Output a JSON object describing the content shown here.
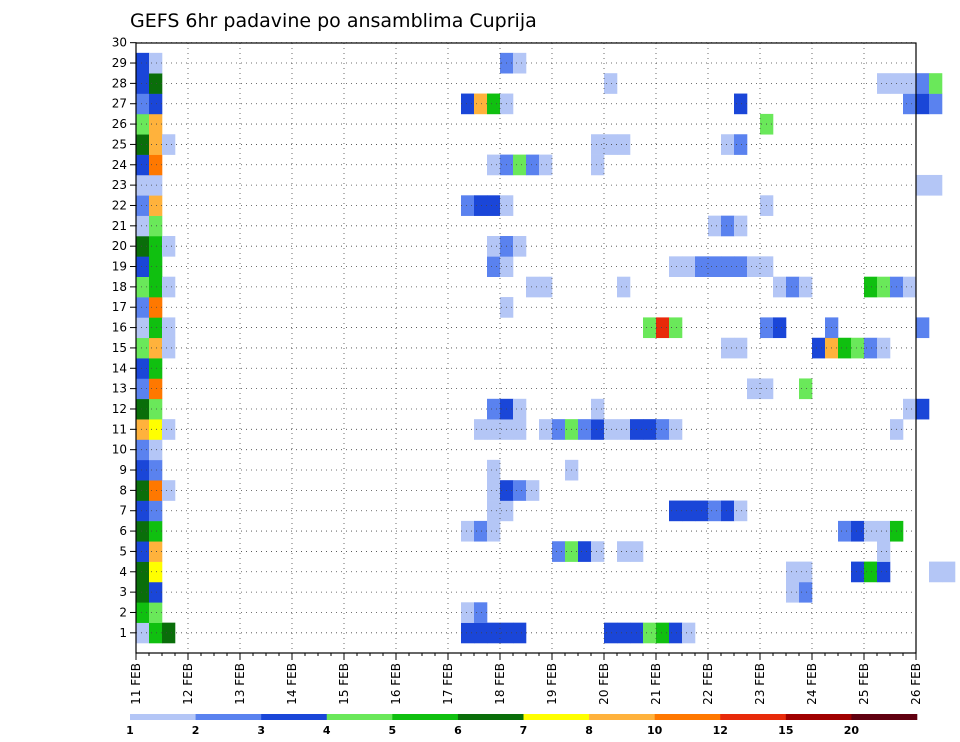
{
  "chart_data": {
    "type": "heatmap",
    "title": "GEFS 6hr padavine po ansamblima Cuprija",
    "y_ticks": [
      "1",
      "2",
      "3",
      "4",
      "5",
      "6",
      "7",
      "8",
      "9",
      "10",
      "11",
      "12",
      "13",
      "14",
      "15",
      "16",
      "17",
      "18",
      "19",
      "20",
      "21",
      "22",
      "23",
      "24",
      "25",
      "26",
      "27",
      "28",
      "29",
      "30"
    ],
    "x_ticks": [
      "11 FEB",
      "12 FEB",
      "13 FEB",
      "14 FEB",
      "15 FEB",
      "16 FEB",
      "17 FEB",
      "18 FEB",
      "19 FEB",
      "20 FEB",
      "21 FEB",
      "22 FEB",
      "23 FEB",
      "24 FEB",
      "25 FEB",
      "26 FEB"
    ],
    "x_range": [
      "11 FEB 00z",
      "26 FEB 00z"
    ],
    "time_step_hours": 6,
    "y_range": [
      1,
      30
    ],
    "grid": "dotted",
    "colorbar": {
      "labels": [
        "1",
        "2",
        "3",
        "4",
        "5",
        "6",
        "7",
        "8",
        "10",
        "12",
        "15",
        "20"
      ],
      "colors": [
        "#b4c6f6",
        "#5a82ef",
        "#1a46d8",
        "#6ae85a",
        "#10c010",
        "#0a6e0a",
        "#ffff00",
        "#ffb23c",
        "#ff7800",
        "#e82a0a",
        "#a00000",
        "#600010"
      ]
    },
    "cells": [
      [
        1,
        0,
        0
      ],
      [
        1,
        1,
        4
      ],
      [
        1,
        2,
        5
      ],
      [
        1,
        25,
        2
      ],
      [
        1,
        26,
        2
      ],
      [
        1,
        27,
        2
      ],
      [
        1,
        28,
        2
      ],
      [
        1,
        29,
        2
      ],
      [
        1,
        36,
        2
      ],
      [
        1,
        37,
        2
      ],
      [
        1,
        38,
        2
      ],
      [
        1,
        39,
        3
      ],
      [
        1,
        40,
        4
      ],
      [
        1,
        41,
        2
      ],
      [
        1,
        42,
        0
      ],
      [
        2,
        0,
        4
      ],
      [
        2,
        1,
        3
      ],
      [
        2,
        25,
        0
      ],
      [
        2,
        26,
        1
      ],
      [
        3,
        0,
        5
      ],
      [
        3,
        1,
        2
      ],
      [
        3,
        50,
        0
      ],
      [
        3,
        51,
        1
      ],
      [
        4,
        0,
        5
      ],
      [
        4,
        1,
        6
      ],
      [
        4,
        50,
        0
      ],
      [
        4,
        51,
        0
      ],
      [
        4,
        55,
        2
      ],
      [
        4,
        56,
        4
      ],
      [
        4,
        57,
        2
      ],
      [
        4,
        61,
        0
      ],
      [
        4,
        62,
        0
      ],
      [
        4,
        64,
        1
      ],
      [
        5,
        0,
        2
      ],
      [
        5,
        1,
        7
      ],
      [
        5,
        32,
        1
      ],
      [
        5,
        33,
        3
      ],
      [
        5,
        34,
        2
      ],
      [
        5,
        35,
        0
      ],
      [
        5,
        37,
        0
      ],
      [
        5,
        38,
        0
      ],
      [
        5,
        57,
        0
      ],
      [
        6,
        0,
        5
      ],
      [
        6,
        1,
        4
      ],
      [
        6,
        25,
        0
      ],
      [
        6,
        26,
        1
      ],
      [
        6,
        27,
        0
      ],
      [
        6,
        54,
        1
      ],
      [
        6,
        55,
        2
      ],
      [
        6,
        56,
        0
      ],
      [
        6,
        57,
        0
      ],
      [
        6,
        58,
        4
      ],
      [
        7,
        0,
        2
      ],
      [
        7,
        1,
        1
      ],
      [
        7,
        27,
        0
      ],
      [
        7,
        28,
        0
      ],
      [
        7,
        41,
        2
      ],
      [
        7,
        42,
        2
      ],
      [
        7,
        43,
        2
      ],
      [
        7,
        44,
        1
      ],
      [
        7,
        45,
        2
      ],
      [
        7,
        46,
        0
      ],
      [
        8,
        0,
        5
      ],
      [
        8,
        1,
        8
      ],
      [
        8,
        2,
        0
      ],
      [
        8,
        27,
        0
      ],
      [
        8,
        28,
        2
      ],
      [
        8,
        29,
        1
      ],
      [
        8,
        30,
        0
      ],
      [
        9,
        0,
        2
      ],
      [
        9,
        1,
        1
      ],
      [
        9,
        27,
        0
      ],
      [
        9,
        33,
        0
      ],
      [
        10,
        0,
        1
      ],
      [
        10,
        1,
        0
      ],
      [
        11,
        0,
        7
      ],
      [
        11,
        1,
        6
      ],
      [
        11,
        2,
        0
      ],
      [
        11,
        26,
        0
      ],
      [
        11,
        27,
        0
      ],
      [
        11,
        28,
        0
      ],
      [
        11,
        29,
        0
      ],
      [
        11,
        31,
        0
      ],
      [
        11,
        32,
        1
      ],
      [
        11,
        33,
        3
      ],
      [
        11,
        34,
        1
      ],
      [
        11,
        35,
        2
      ],
      [
        11,
        36,
        0
      ],
      [
        11,
        37,
        0
      ],
      [
        11,
        38,
        2
      ],
      [
        11,
        39,
        2
      ],
      [
        11,
        40,
        1
      ],
      [
        11,
        41,
        0
      ],
      [
        11,
        58,
        0
      ],
      [
        12,
        0,
        5
      ],
      [
        12,
        1,
        3
      ],
      [
        12,
        27,
        1
      ],
      [
        12,
        28,
        2
      ],
      [
        12,
        29,
        0
      ],
      [
        12,
        35,
        0
      ],
      [
        12,
        59,
        0
      ],
      [
        12,
        60,
        2
      ],
      [
        13,
        0,
        1
      ],
      [
        13,
        1,
        8
      ],
      [
        13,
        47,
        0
      ],
      [
        13,
        48,
        0
      ],
      [
        13,
        51,
        3
      ],
      [
        14,
        0,
        2
      ],
      [
        14,
        1,
        4
      ],
      [
        15,
        0,
        3
      ],
      [
        15,
        1,
        7
      ],
      [
        15,
        2,
        0
      ],
      [
        15,
        45,
        0
      ],
      [
        15,
        46,
        0
      ],
      [
        15,
        52,
        2
      ],
      [
        15,
        53,
        7
      ],
      [
        15,
        54,
        4
      ],
      [
        15,
        55,
        3
      ],
      [
        15,
        56,
        1
      ],
      [
        15,
        57,
        0
      ],
      [
        16,
        0,
        0
      ],
      [
        16,
        1,
        4
      ],
      [
        16,
        2,
        0
      ],
      [
        16,
        39,
        3
      ],
      [
        16,
        40,
        9
      ],
      [
        16,
        41,
        3
      ],
      [
        16,
        48,
        1
      ],
      [
        16,
        49,
        2
      ],
      [
        16,
        53,
        1
      ],
      [
        16,
        60,
        1
      ],
      [
        17,
        0,
        1
      ],
      [
        17,
        1,
        8
      ],
      [
        17,
        28,
        0
      ],
      [
        18,
        0,
        3
      ],
      [
        18,
        1,
        4
      ],
      [
        18,
        2,
        0
      ],
      [
        18,
        30,
        0
      ],
      [
        18,
        31,
        0
      ],
      [
        18,
        37,
        0
      ],
      [
        18,
        49,
        0
      ],
      [
        18,
        50,
        1
      ],
      [
        18,
        51,
        0
      ],
      [
        18,
        56,
        4
      ],
      [
        18,
        57,
        3
      ],
      [
        18,
        58,
        1
      ],
      [
        18,
        59,
        0
      ],
      [
        19,
        0,
        2
      ],
      [
        19,
        1,
        4
      ],
      [
        19,
        27,
        1
      ],
      [
        19,
        28,
        0
      ],
      [
        19,
        41,
        0
      ],
      [
        19,
        42,
        0
      ],
      [
        19,
        43,
        1
      ],
      [
        19,
        44,
        1
      ],
      [
        19,
        45,
        1
      ],
      [
        19,
        46,
        1
      ],
      [
        19,
        47,
        0
      ],
      [
        19,
        48,
        0
      ],
      [
        20,
        0,
        5
      ],
      [
        20,
        1,
        4
      ],
      [
        20,
        2,
        0
      ],
      [
        20,
        27,
        0
      ],
      [
        20,
        28,
        1
      ],
      [
        20,
        29,
        0
      ],
      [
        21,
        0,
        0
      ],
      [
        21,
        1,
        3
      ],
      [
        21,
        44,
        0
      ],
      [
        21,
        45,
        1
      ],
      [
        21,
        46,
        0
      ],
      [
        22,
        0,
        1
      ],
      [
        22,
        1,
        7
      ],
      [
        22,
        25,
        1
      ],
      [
        22,
        26,
        2
      ],
      [
        22,
        27,
        2
      ],
      [
        22,
        28,
        0
      ],
      [
        22,
        48,
        0
      ],
      [
        23,
        0,
        0
      ],
      [
        23,
        1,
        0
      ],
      [
        23,
        60,
        0
      ],
      [
        23,
        61,
        0
      ],
      [
        24,
        0,
        2
      ],
      [
        24,
        1,
        8
      ],
      [
        24,
        27,
        0
      ],
      [
        24,
        28,
        1
      ],
      [
        24,
        29,
        3
      ],
      [
        24,
        30,
        1
      ],
      [
        24,
        31,
        0
      ],
      [
        24,
        35,
        0
      ],
      [
        25,
        0,
        5
      ],
      [
        25,
        1,
        7
      ],
      [
        25,
        2,
        0
      ],
      [
        25,
        35,
        0
      ],
      [
        25,
        36,
        0
      ],
      [
        25,
        37,
        0
      ],
      [
        25,
        45,
        0
      ],
      [
        25,
        46,
        1
      ],
      [
        26,
        0,
        3
      ],
      [
        26,
        1,
        7
      ],
      [
        26,
        48,
        3
      ],
      [
        27,
        0,
        1
      ],
      [
        27,
        1,
        2
      ],
      [
        27,
        25,
        2
      ],
      [
        27,
        26,
        7
      ],
      [
        27,
        27,
        4
      ],
      [
        27,
        28,
        0
      ],
      [
        27,
        46,
        2
      ],
      [
        27,
        59,
        1
      ],
      [
        27,
        60,
        2
      ],
      [
        27,
        61,
        1
      ],
      [
        28,
        0,
        2
      ],
      [
        28,
        1,
        5
      ],
      [
        28,
        36,
        0
      ],
      [
        28,
        57,
        0
      ],
      [
        28,
        58,
        0
      ],
      [
        28,
        59,
        0
      ],
      [
        28,
        60,
        1
      ],
      [
        28,
        61,
        3
      ],
      [
        29,
        0,
        2
      ],
      [
        29,
        1,
        0
      ],
      [
        29,
        28,
        1
      ],
      [
        29,
        29,
        0
      ]
    ]
  }
}
